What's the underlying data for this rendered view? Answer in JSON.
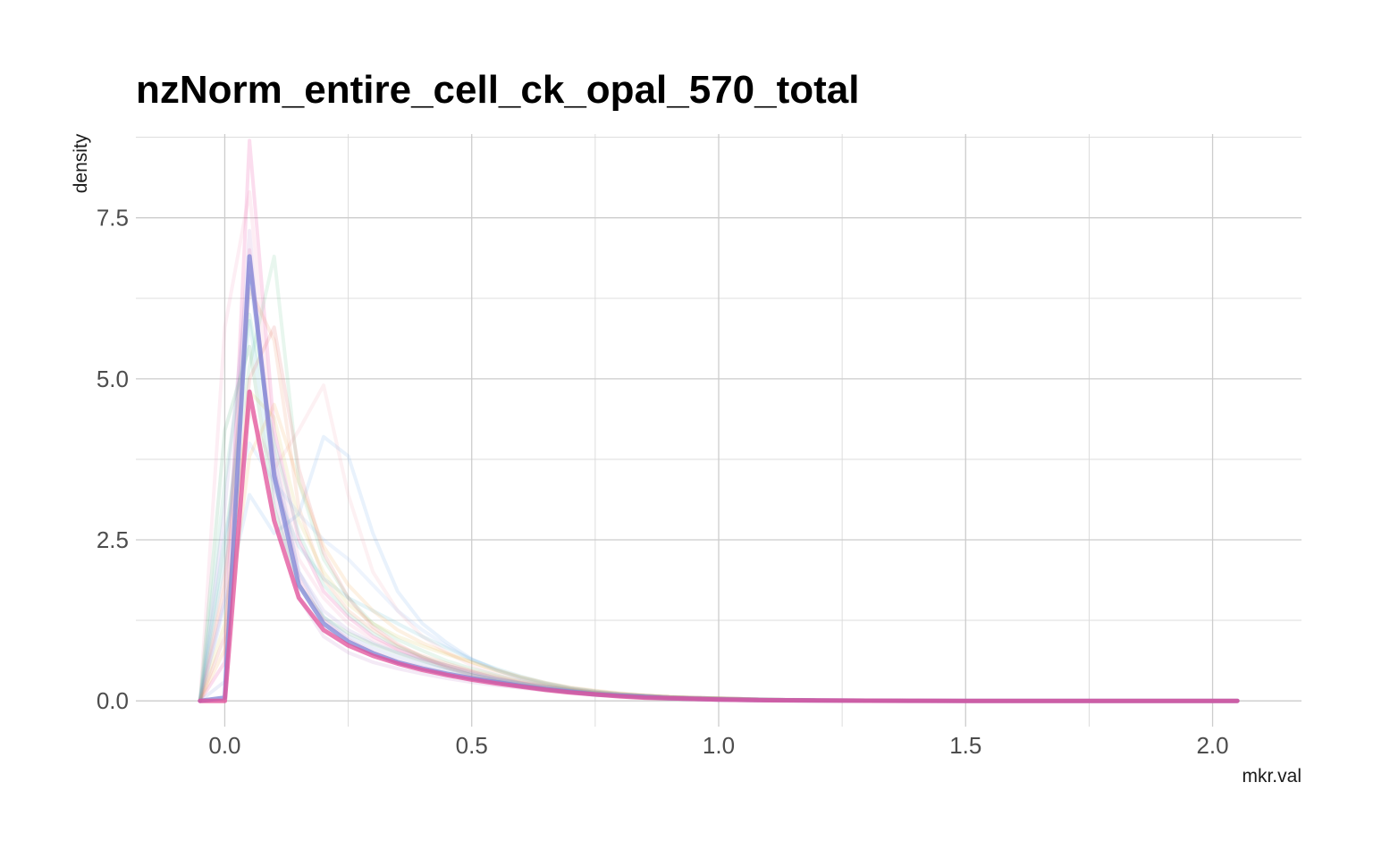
{
  "chart_data": {
    "type": "line",
    "title": "nzNorm_entire_cell_ck_opal_570_total",
    "xlabel": "mkr.val",
    "ylabel": "density",
    "xlim": [
      -0.18,
      2.18
    ],
    "ylim": [
      -0.4,
      8.8
    ],
    "x_ticks": [
      0.0,
      0.5,
      1.0,
      1.5,
      2.0
    ],
    "x_tick_labels": [
      "0.0",
      "0.5",
      "1.0",
      "1.5",
      "2.0"
    ],
    "y_ticks": [
      0.0,
      2.5,
      5.0,
      7.5
    ],
    "y_tick_labels": [
      "0.0",
      "2.5",
      "5.0",
      "7.5"
    ],
    "grid": true,
    "legend": "none",
    "line_opacity": 0.15,
    "x": [
      -0.05,
      0.0,
      0.05,
      0.1,
      0.15,
      0.2,
      0.25,
      0.3,
      0.35,
      0.4,
      0.45,
      0.5,
      0.55,
      0.6,
      0.65,
      0.7,
      0.75,
      0.8,
      0.85,
      0.9,
      0.95,
      1.0,
      1.1,
      1.2,
      1.3,
      1.4,
      1.5,
      1.6,
      1.7,
      1.8,
      1.9,
      2.0,
      2.05
    ],
    "series": [
      {
        "color": "#e41a8c",
        "values": [
          0,
          0.6,
          8.7,
          4.2,
          2.5,
          1.7,
          1.3,
          1.0,
          0.8,
          0.65,
          0.55,
          0.45,
          0.35,
          0.28,
          0.22,
          0.17,
          0.13,
          0.1,
          0.08,
          0.06,
          0.05,
          0.04,
          0.02,
          0.015,
          0.01,
          0.005,
          0.003,
          0.002,
          0.001,
          0.0,
          0.0,
          0.0,
          0.0
        ]
      },
      {
        "color": "#f28cb4",
        "values": [
          0,
          5.8,
          7.9,
          3.9,
          2.2,
          1.6,
          1.2,
          0.95,
          0.8,
          0.68,
          0.55,
          0.45,
          0.36,
          0.28,
          0.22,
          0.17,
          0.13,
          0.1,
          0.08,
          0.06,
          0.05,
          0.04,
          0.02,
          0.01,
          0.005,
          0.003,
          0.002,
          0.001,
          0.0,
          0.0,
          0.0,
          0.0,
          0.0
        ]
      },
      {
        "color": "#f4a0b0",
        "values": [
          0,
          2.0,
          4.5,
          3.6,
          4.2,
          4.9,
          3.2,
          2.0,
          1.4,
          1.0,
          0.75,
          0.55,
          0.42,
          0.32,
          0.25,
          0.19,
          0.14,
          0.11,
          0.08,
          0.06,
          0.05,
          0.04,
          0.02,
          0.01,
          0.005,
          0.003,
          0.002,
          0.001,
          0.0,
          0.0,
          0.0,
          0.0,
          0.0
        ]
      },
      {
        "color": "#6aa5e8",
        "values": [
          0,
          1.5,
          3.2,
          2.6,
          2.9,
          4.1,
          3.8,
          2.6,
          1.7,
          1.2,
          0.9,
          0.65,
          0.48,
          0.35,
          0.26,
          0.19,
          0.14,
          0.1,
          0.08,
          0.06,
          0.04,
          0.03,
          0.02,
          0.01,
          0.005,
          0.003,
          0.002,
          0.001,
          0.0,
          0.0,
          0.0,
          0.0,
          0.0
        ]
      },
      {
        "color": "#66c28a",
        "values": [
          0,
          2.5,
          5.2,
          6.9,
          3.4,
          2.2,
          1.6,
          1.2,
          0.95,
          0.78,
          0.62,
          0.5,
          0.4,
          0.3,
          0.23,
          0.18,
          0.13,
          0.1,
          0.08,
          0.06,
          0.05,
          0.04,
          0.02,
          0.01,
          0.005,
          0.003,
          0.002,
          0.001,
          0.0,
          0.0,
          0.0,
          0.0,
          0.0
        ]
      },
      {
        "color": "#e8845a",
        "values": [
          0,
          1.8,
          6.4,
          5.6,
          3.0,
          1.9,
          1.4,
          1.1,
          0.85,
          0.7,
          0.58,
          0.47,
          0.38,
          0.3,
          0.23,
          0.18,
          0.13,
          0.1,
          0.08,
          0.06,
          0.05,
          0.04,
          0.02,
          0.01,
          0.005,
          0.003,
          0.002,
          0.001,
          0.0,
          0.0,
          0.0,
          0.0,
          0.0
        ]
      },
      {
        "color": "#4fb3c8",
        "values": [
          0,
          2.2,
          5.9,
          3.3,
          2.4,
          1.9,
          1.6,
          1.4,
          1.2,
          1.0,
          0.82,
          0.64,
          0.5,
          0.38,
          0.28,
          0.2,
          0.15,
          0.11,
          0.08,
          0.06,
          0.05,
          0.04,
          0.02,
          0.01,
          0.005,
          0.003,
          0.002,
          0.001,
          0.0,
          0.0,
          0.0,
          0.0,
          0.0
        ]
      },
      {
        "color": "#9a7fd1",
        "values": [
          0,
          3.0,
          6.8,
          3.6,
          2.0,
          1.4,
          1.1,
          0.9,
          0.75,
          0.63,
          0.52,
          0.42,
          0.34,
          0.27,
          0.21,
          0.16,
          0.12,
          0.09,
          0.07,
          0.05,
          0.04,
          0.03,
          0.02,
          0.01,
          0.005,
          0.003,
          0.002,
          0.001,
          0.0,
          0.0,
          0.0,
          0.0,
          0.0
        ]
      },
      {
        "color": "#d8c24a",
        "values": [
          0,
          1.2,
          4.8,
          4.4,
          2.8,
          2.0,
          1.5,
          1.2,
          1.0,
          0.85,
          0.72,
          0.6,
          0.47,
          0.36,
          0.27,
          0.2,
          0.15,
          0.11,
          0.08,
          0.06,
          0.05,
          0.04,
          0.02,
          0.01,
          0.005,
          0.003,
          0.002,
          0.001,
          0.0,
          0.0,
          0.0,
          0.0,
          0.0
        ]
      },
      {
        "color": "#3c9e6e",
        "values": [
          0,
          4.2,
          5.5,
          3.0,
          1.8,
          1.3,
          1.05,
          0.88,
          0.74,
          0.62,
          0.5,
          0.4,
          0.32,
          0.25,
          0.19,
          0.15,
          0.11,
          0.08,
          0.06,
          0.05,
          0.04,
          0.03,
          0.02,
          0.01,
          0.005,
          0.003,
          0.002,
          0.001,
          0.0,
          0.0,
          0.0,
          0.0,
          0.0
        ]
      },
      {
        "color": "#e05a5a",
        "values": [
          0,
          1.0,
          5.0,
          5.8,
          3.6,
          2.3,
          1.6,
          1.15,
          0.88,
          0.68,
          0.52,
          0.4,
          0.3,
          0.23,
          0.17,
          0.13,
          0.1,
          0.07,
          0.05,
          0.04,
          0.03,
          0.02,
          0.01,
          0.005,
          0.003,
          0.002,
          0.001,
          0.0,
          0.0,
          0.0,
          0.0,
          0.0,
          0.0
        ]
      },
      {
        "color": "#8fb3f0",
        "values": [
          0,
          2.6,
          4.0,
          3.4,
          2.9,
          2.5,
          2.2,
          1.8,
          1.4,
          1.1,
          0.85,
          0.64,
          0.48,
          0.36,
          0.27,
          0.2,
          0.15,
          0.11,
          0.08,
          0.06,
          0.05,
          0.04,
          0.02,
          0.01,
          0.005,
          0.003,
          0.002,
          0.001,
          0.0,
          0.0,
          0.0,
          0.0,
          0.0
        ]
      },
      {
        "color": "#b86fc4",
        "values": [
          0,
          1.6,
          7.3,
          3.2,
          1.6,
          1.0,
          0.75,
          0.6,
          0.5,
          0.42,
          0.35,
          0.29,
          0.24,
          0.2,
          0.16,
          0.12,
          0.09,
          0.07,
          0.05,
          0.04,
          0.03,
          0.02,
          0.01,
          0.005,
          0.003,
          0.002,
          0.001,
          0.0,
          0.0,
          0.0,
          0.0,
          0.0,
          0.0
        ]
      },
      {
        "color": "#56c0a0",
        "values": [
          0,
          3.4,
          6.0,
          4.0,
          2.6,
          1.8,
          1.35,
          1.05,
          0.84,
          0.68,
          0.55,
          0.44,
          0.35,
          0.27,
          0.21,
          0.16,
          0.12,
          0.09,
          0.07,
          0.05,
          0.04,
          0.03,
          0.02,
          0.01,
          0.005,
          0.003,
          0.002,
          0.001,
          0.0,
          0.0,
          0.0,
          0.0,
          0.0
        ]
      },
      {
        "color": "#f0a040",
        "values": [
          0,
          0.8,
          3.8,
          4.6,
          3.4,
          2.4,
          1.8,
          1.4,
          1.1,
          0.9,
          0.74,
          0.6,
          0.48,
          0.37,
          0.28,
          0.21,
          0.16,
          0.12,
          0.09,
          0.07,
          0.05,
          0.04,
          0.02,
          0.01,
          0.005,
          0.003,
          0.002,
          0.001,
          0.0,
          0.0,
          0.0,
          0.0,
          0.0
        ]
      },
      {
        "color": "#7a8fd8",
        "values": [
          0,
          0.3,
          6.6,
          3.8,
          2.0,
          1.3,
          1.0,
          0.82,
          0.68,
          0.57,
          0.48,
          0.4,
          0.33,
          0.27,
          0.21,
          0.16,
          0.12,
          0.09,
          0.07,
          0.05,
          0.04,
          0.03,
          0.02,
          0.01,
          0.005,
          0.003,
          0.002,
          0.001,
          0.0,
          0.0,
          0.0,
          0.0,
          0.0
        ]
      },
      {
        "color": "#d94fa6",
        "values": [
          0,
          0.0,
          7.0,
          3.6,
          1.9,
          1.25,
          0.95,
          0.76,
          0.62,
          0.52,
          0.43,
          0.36,
          0.3,
          0.24,
          0.19,
          0.15,
          0.11,
          0.08,
          0.06,
          0.05,
          0.04,
          0.03,
          0.02,
          0.01,
          0.005,
          0.003,
          0.002,
          0.001,
          0.0,
          0.0,
          0.0,
          0.0,
          0.0
        ]
      }
    ],
    "emphasis_series": [
      {
        "color": "#7f86d6",
        "values": [
          0,
          0.05,
          6.9,
          3.5,
          1.8,
          1.2,
          0.92,
          0.74,
          0.6,
          0.5,
          0.42,
          0.35,
          0.29,
          0.23,
          0.18,
          0.14,
          0.1,
          0.08,
          0.06,
          0.04,
          0.03,
          0.02,
          0.01,
          0.005,
          0.003,
          0.001,
          0.0,
          0.0,
          0.0,
          0.0,
          0.0,
          0.0,
          0.0
        ]
      },
      {
        "color": "#e1509a",
        "values": [
          0,
          0.0,
          4.8,
          2.8,
          1.6,
          1.1,
          0.86,
          0.7,
          0.58,
          0.48,
          0.4,
          0.33,
          0.27,
          0.22,
          0.17,
          0.13,
          0.1,
          0.07,
          0.05,
          0.04,
          0.03,
          0.02,
          0.01,
          0.005,
          0.003,
          0.001,
          0.0,
          0.0,
          0.0,
          0.0,
          0.0,
          0.0,
          0.0
        ]
      }
    ]
  }
}
